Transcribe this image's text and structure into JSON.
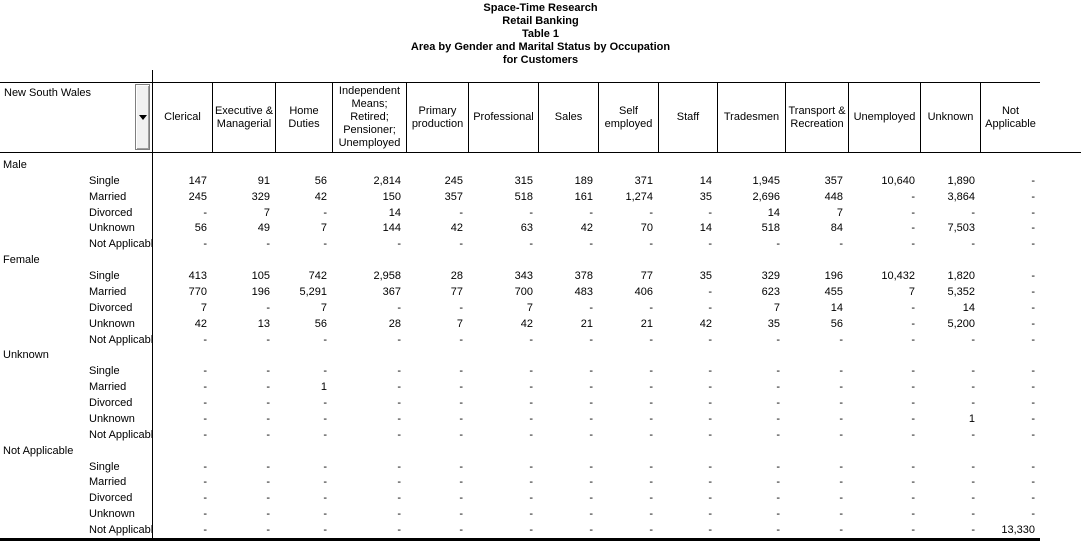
{
  "colors": {
    "text": "#000000",
    "background": "#ffffff",
    "dropdown_button_bg": "#f1f1f1",
    "border": "#000000"
  },
  "title": {
    "lines": [
      "Space-Time Research",
      "Retail Banking",
      "Table 1",
      "Area by Gender and Marital Status by Occupation",
      "for Customers"
    ]
  },
  "table": {
    "area_selector": {
      "label": "New South Wales",
      "icon": "chevron-down"
    },
    "columns": [
      "Clerical",
      "Executive & Managerial",
      "Home Duties",
      "Independent Means; Retired; Pensioner; Unemployed",
      "Primary production",
      "Professional",
      "Sales",
      "Self employed",
      "Staff",
      "Tradesmen",
      "Transport & Recreation",
      "Unemployed",
      "Unknown",
      "Not Applicable"
    ],
    "groups": [
      {
        "label": "Male",
        "rows": [
          {
            "label": "Single",
            "values": [
              "147",
              "91",
              "56",
              "2,814",
              "245",
              "315",
              "189",
              "371",
              "14",
              "1,945",
              "357",
              "10,640",
              "1,890",
              "-"
            ]
          },
          {
            "label": "Married",
            "values": [
              "245",
              "329",
              "42",
              "150",
              "357",
              "518",
              "161",
              "1,274",
              "35",
              "2,696",
              "448",
              "-",
              "3,864",
              "-"
            ]
          },
          {
            "label": "Divorced",
            "values": [
              "-",
              "7",
              "-",
              "14",
              "-",
              "-",
              "-",
              "-",
              "-",
              "14",
              "7",
              "-",
              "-",
              "-"
            ]
          },
          {
            "label": "Unknown",
            "values": [
              "56",
              "49",
              "7",
              "144",
              "42",
              "63",
              "42",
              "70",
              "14",
              "518",
              "84",
              "-",
              "7,503",
              "-"
            ]
          },
          {
            "label": "Not Applicable",
            "values": [
              "-",
              "-",
              "-",
              "-",
              "-",
              "-",
              "-",
              "-",
              "-",
              "-",
              "-",
              "-",
              "-",
              "-"
            ]
          }
        ]
      },
      {
        "label": "Female",
        "rows": [
          {
            "label": "Single",
            "values": [
              "413",
              "105",
              "742",
              "2,958",
              "28",
              "343",
              "378",
              "77",
              "35",
              "329",
              "196",
              "10,432",
              "1,820",
              "-"
            ]
          },
          {
            "label": "Married",
            "values": [
              "770",
              "196",
              "5,291",
              "367",
              "77",
              "700",
              "483",
              "406",
              "-",
              "623",
              "455",
              "7",
              "5,352",
              "-"
            ]
          },
          {
            "label": "Divorced",
            "values": [
              "7",
              "-",
              "7",
              "-",
              "-",
              "7",
              "-",
              "-",
              "-",
              "7",
              "14",
              "-",
              "14",
              "-"
            ]
          },
          {
            "label": "Unknown",
            "values": [
              "42",
              "13",
              "56",
              "28",
              "7",
              "42",
              "21",
              "21",
              "42",
              "35",
              "56",
              "-",
              "5,200",
              "-"
            ]
          },
          {
            "label": "Not Applicable",
            "values": [
              "-",
              "-",
              "-",
              "-",
              "-",
              "-",
              "-",
              "-",
              "-",
              "-",
              "-",
              "-",
              "-",
              "-"
            ]
          }
        ]
      },
      {
        "label": "Unknown",
        "rows": [
          {
            "label": "Single",
            "values": [
              "-",
              "-",
              "-",
              "-",
              "-",
              "-",
              "-",
              "-",
              "-",
              "-",
              "-",
              "-",
              "-",
              "-"
            ]
          },
          {
            "label": "Married",
            "values": [
              "-",
              "-",
              "1",
              "-",
              "-",
              "-",
              "-",
              "-",
              "-",
              "-",
              "-",
              "-",
              "-",
              "-"
            ]
          },
          {
            "label": "Divorced",
            "values": [
              "-",
              "-",
              "-",
              "-",
              "-",
              "-",
              "-",
              "-",
              "-",
              "-",
              "-",
              "-",
              "-",
              "-"
            ]
          },
          {
            "label": "Unknown",
            "values": [
              "-",
              "-",
              "-",
              "-",
              "-",
              "-",
              "-",
              "-",
              "-",
              "-",
              "-",
              "-",
              "1",
              "-"
            ]
          },
          {
            "label": "Not Applicable",
            "values": [
              "-",
              "-",
              "-",
              "-",
              "-",
              "-",
              "-",
              "-",
              "-",
              "-",
              "-",
              "-",
              "-",
              "-"
            ]
          }
        ]
      },
      {
        "label": "Not Applicable",
        "rows": [
          {
            "label": "Single",
            "values": [
              "-",
              "-",
              "-",
              "-",
              "-",
              "-",
              "-",
              "-",
              "-",
              "-",
              "-",
              "-",
              "-",
              "-"
            ]
          },
          {
            "label": "Married",
            "values": [
              "-",
              "-",
              "-",
              "-",
              "-",
              "-",
              "-",
              "-",
              "-",
              "-",
              "-",
              "-",
              "-",
              "-"
            ]
          },
          {
            "label": "Divorced",
            "values": [
              "-",
              "-",
              "-",
              "-",
              "-",
              "-",
              "-",
              "-",
              "-",
              "-",
              "-",
              "-",
              "-",
              "-"
            ]
          },
          {
            "label": "Unknown",
            "values": [
              "-",
              "-",
              "-",
              "-",
              "-",
              "-",
              "-",
              "-",
              "-",
              "-",
              "-",
              "-",
              "-",
              "-"
            ]
          },
          {
            "label": "Not Applicable",
            "values": [
              "-",
              "-",
              "-",
              "-",
              "-",
              "-",
              "-",
              "-",
              "-",
              "-",
              "-",
              "-",
              "-",
              "13,330"
            ]
          }
        ]
      }
    ]
  }
}
